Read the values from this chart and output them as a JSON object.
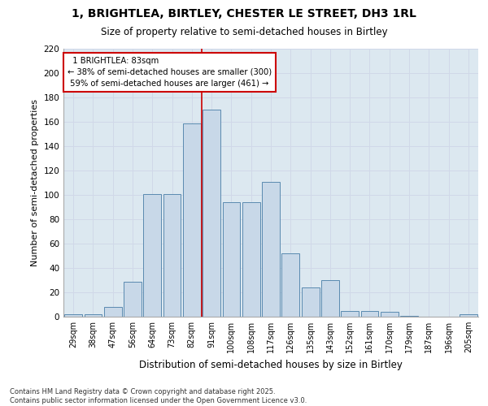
{
  "title1": "1, BRIGHTLEA, BIRTLEY, CHESTER LE STREET, DH3 1RL",
  "title2": "Size of property relative to semi-detached houses in Birtley",
  "xlabel": "Distribution of semi-detached houses by size in Birtley",
  "ylabel": "Number of semi-detached properties",
  "categories": [
    "29sqm",
    "38sqm",
    "47sqm",
    "56sqm",
    "64sqm",
    "73sqm",
    "82sqm",
    "91sqm",
    "100sqm",
    "108sqm",
    "117sqm",
    "126sqm",
    "135sqm",
    "143sqm",
    "152sqm",
    "161sqm",
    "170sqm",
    "179sqm",
    "187sqm",
    "196sqm",
    "205sqm"
  ],
  "values": [
    2,
    2,
    8,
    29,
    101,
    101,
    159,
    170,
    94,
    94,
    111,
    52,
    24,
    30,
    5,
    5,
    4,
    1,
    0,
    0,
    2
  ],
  "bar_color": "#c8d8e8",
  "bar_edge_color": "#5a8ab0",
  "marker_label": "1 BRIGHTLEA: 83sqm",
  "pct_smaller": 38,
  "pct_smaller_count": 300,
  "pct_larger": 59,
  "pct_larger_count": 461,
  "marker_line_color": "#cc0000",
  "annotation_box_color": "#ffffff",
  "annotation_border_color": "#cc0000",
  "grid_color": "#d0d8e8",
  "background_color": "#dce8f0",
  "ylim": [
    0,
    220
  ],
  "yticks": [
    0,
    20,
    40,
    60,
    80,
    100,
    120,
    140,
    160,
    180,
    200,
    220
  ],
  "footer1": "Contains HM Land Registry data © Crown copyright and database right 2025.",
  "footer2": "Contains public sector information licensed under the Open Government Licence v3.0."
}
